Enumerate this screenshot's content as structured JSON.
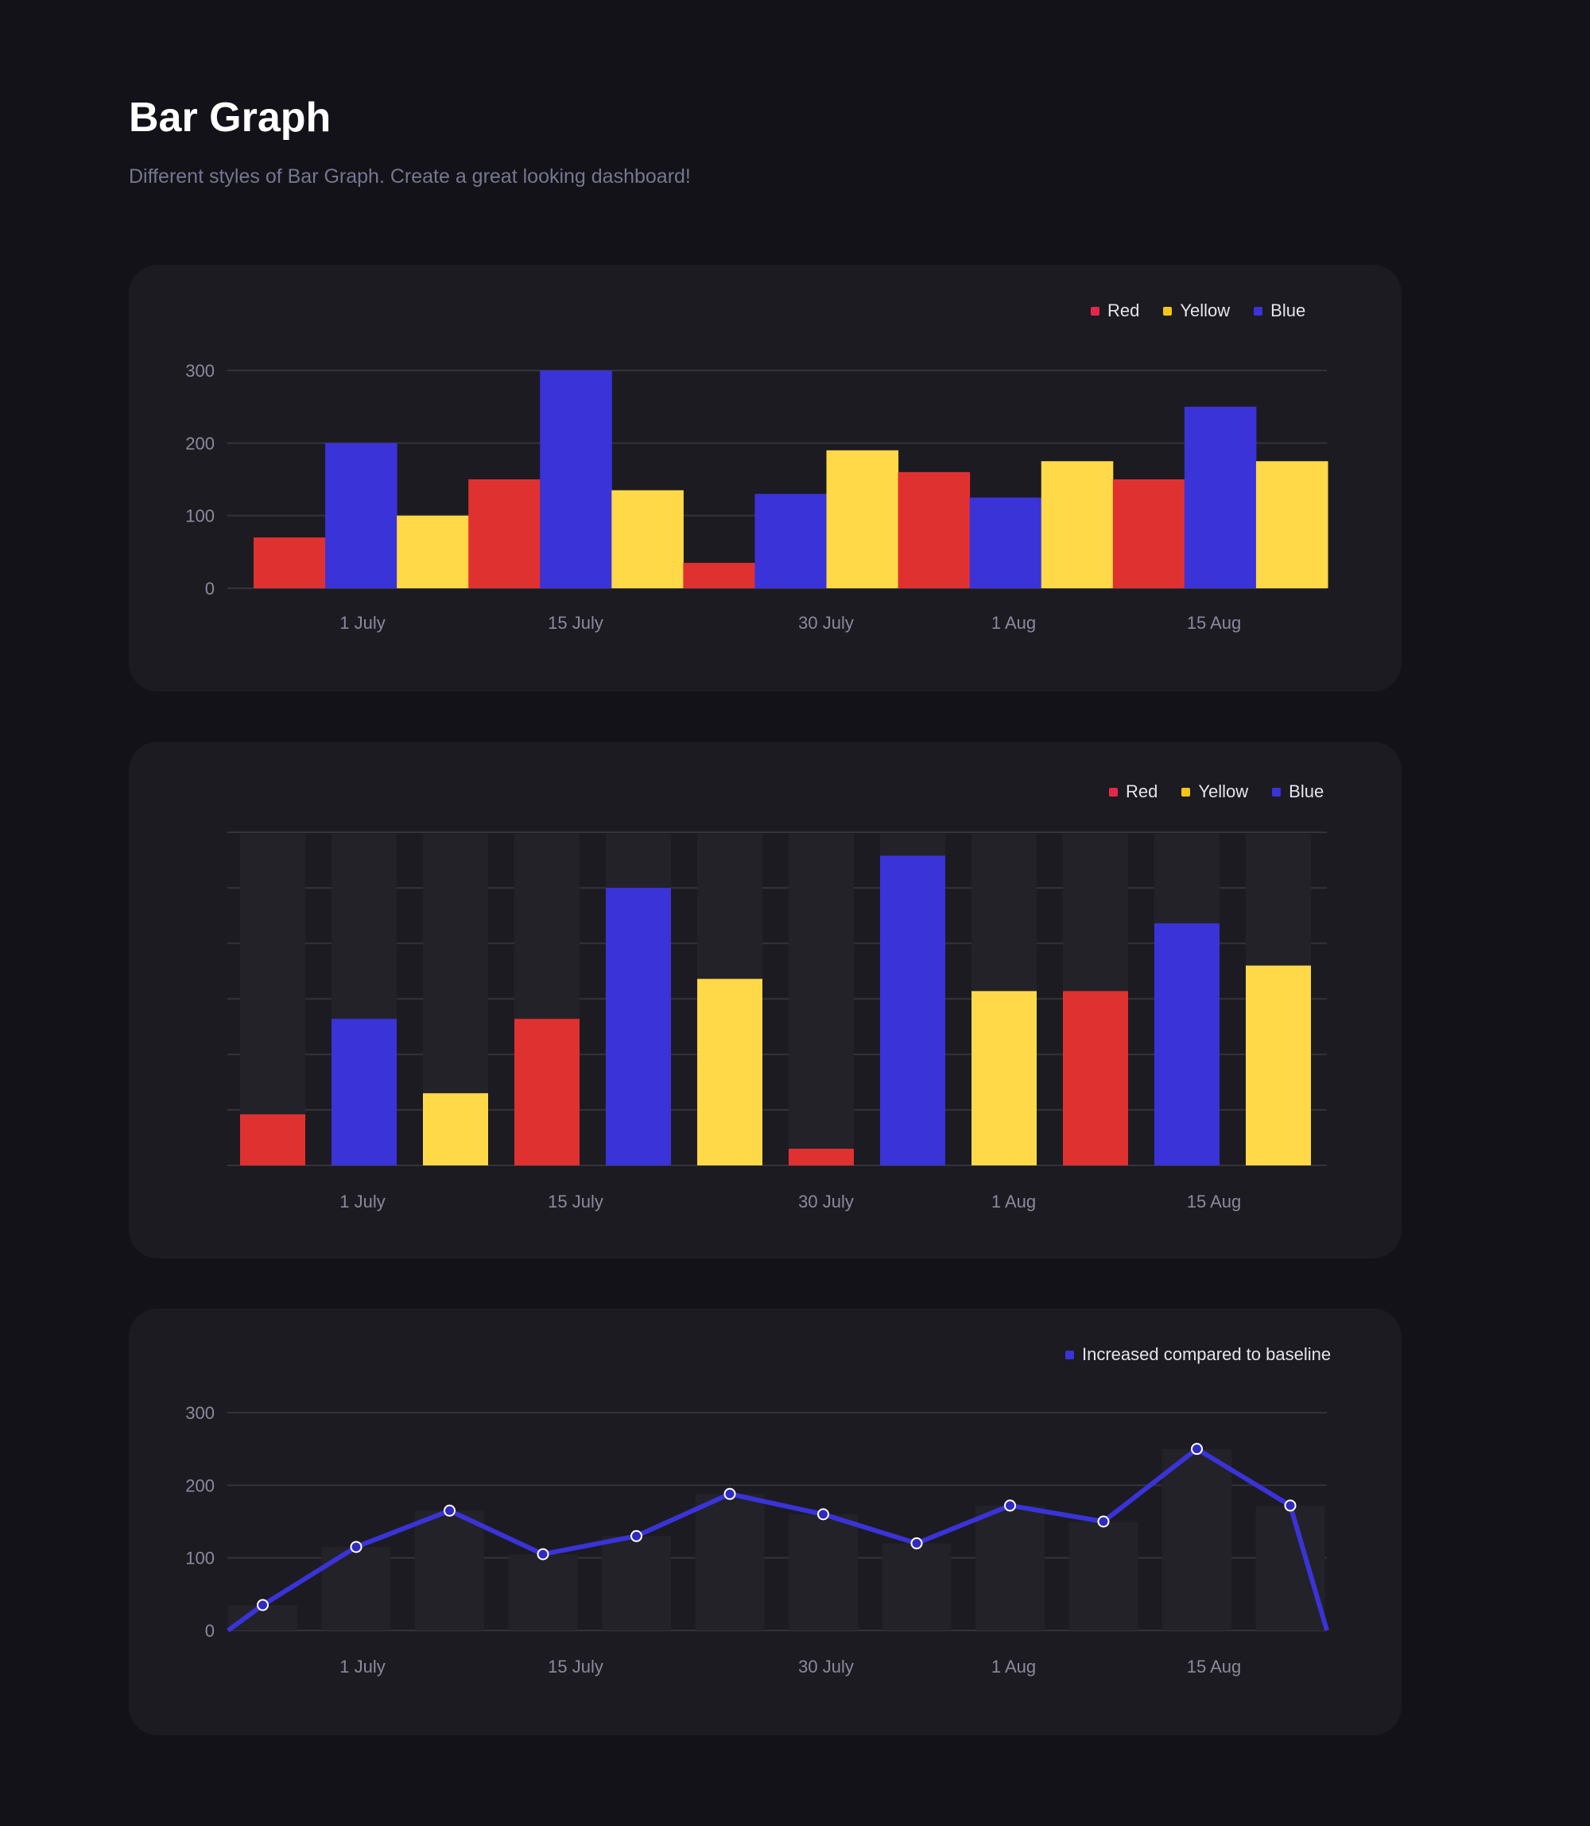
{
  "header": {
    "title": "Bar Graph",
    "subtitle": "Different styles of Bar Graph. Create a great looking dashboard!"
  },
  "colors": {
    "red": "#e03131",
    "yellow": "#ffd947",
    "blue": "#3a33d8",
    "background": "#131218",
    "card": "#1c1b21"
  },
  "chart_data": [
    {
      "type": "bar",
      "style": "grouped",
      "legend": [
        "Red",
        "Yellow",
        "Blue"
      ],
      "legend_colors": [
        "#e8264a",
        "#f5c518",
        "#3a33d8"
      ],
      "legend_position": "top-right",
      "x_tick_labels": [
        "1 July",
        "15 July",
        "30 July",
        "1 Aug",
        "15 Aug"
      ],
      "y_ticks": [
        "0",
        "100",
        "200",
        "300"
      ],
      "ylim": [
        0,
        300
      ],
      "grid": true,
      "bars": [
        {
          "series": "Red",
          "value": 70
        },
        {
          "series": "Blue",
          "value": 200
        },
        {
          "series": "Yellow",
          "value": 100
        },
        {
          "series": "Red",
          "value": 150
        },
        {
          "series": "Blue",
          "value": 300
        },
        {
          "series": "Yellow",
          "value": 135
        },
        {
          "series": "Red",
          "value": 35
        },
        {
          "series": "Blue",
          "value": 130
        },
        {
          "series": "Yellow",
          "value": 190
        },
        {
          "series": "Red",
          "value": 160
        },
        {
          "series": "Blue",
          "value": 125
        },
        {
          "series": "Yellow",
          "value": 175
        },
        {
          "series": "Red",
          "value": 150
        },
        {
          "series": "Blue",
          "value": 250
        },
        {
          "series": "Yellow",
          "value": 175
        }
      ]
    },
    {
      "type": "bar",
      "style": "separated with track backgrounds",
      "legend": [
        "Red",
        "Yellow",
        "Blue"
      ],
      "legend_colors": [
        "#e8264a",
        "#f5c518",
        "#3a33d8"
      ],
      "legend_position": "top-right",
      "x_tick_labels": [
        "1 July",
        "15 July",
        "30 July",
        "1 Aug",
        "15 Aug"
      ],
      "y_ticks": [],
      "ylim": [
        0,
        300
      ],
      "grid": true,
      "bars": [
        {
          "series": "Red",
          "value": 46
        },
        {
          "series": "Blue",
          "value": 132
        },
        {
          "series": "Yellow",
          "value": 65
        },
        {
          "series": "Red",
          "value": 132
        },
        {
          "series": "Blue",
          "value": 250
        },
        {
          "series": "Yellow",
          "value": 168
        },
        {
          "series": "Red",
          "value": 15
        },
        {
          "series": "Blue",
          "value": 279
        },
        {
          "series": "Yellow",
          "value": 157
        },
        {
          "series": "Red",
          "value": 157
        },
        {
          "series": "Blue",
          "value": 218
        },
        {
          "series": "Yellow",
          "value": 180
        }
      ]
    },
    {
      "type": "line",
      "legend": [
        "Increased compared to baseline"
      ],
      "legend_colors": [
        "#3a33d8"
      ],
      "legend_position": "top-right",
      "x_tick_labels": [
        "1 July",
        "15 July",
        "30 July",
        "1 Aug",
        "15 Aug"
      ],
      "y_ticks": [
        "0",
        "100",
        "200",
        "300"
      ],
      "ylim": [
        0,
        300
      ],
      "grid": true,
      "background_bars": [
        35,
        115,
        165,
        105,
        130,
        188,
        160,
        120,
        172,
        150,
        250,
        172
      ],
      "line_values": [
        0,
        35,
        115,
        165,
        105,
        130,
        188,
        160,
        120,
        172,
        150,
        250,
        172,
        0
      ]
    }
  ]
}
